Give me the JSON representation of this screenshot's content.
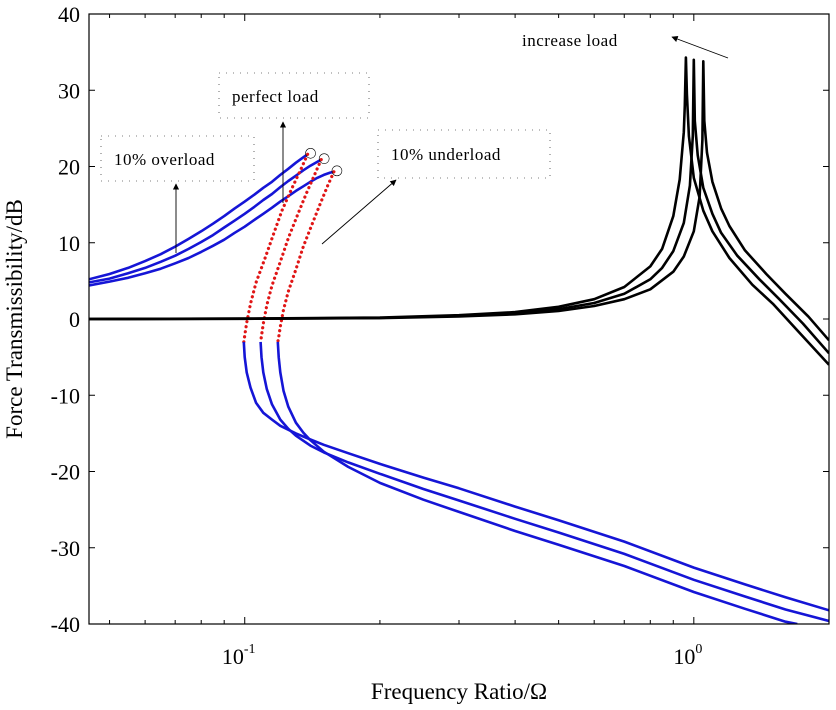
{
  "chart_data": {
    "type": "line",
    "title": "",
    "xlabel": "Frequency Ratio/Ω",
    "ylabel": "Force Transmissibility/dB",
    "xscale": "log",
    "xlim": [
      0.045,
      2.0
    ],
    "ylim": [
      -40,
      40
    ],
    "grid": false,
    "legend": "none",
    "x_ticks": [
      {
        "value": 0.1,
        "base": "10",
        "exp": "-1"
      },
      {
        "value": 1.0,
        "base": "10",
        "exp": "0"
      }
    ],
    "y_ticks": [
      40,
      30,
      20,
      10,
      0,
      -10,
      -20,
      -30,
      -40
    ],
    "y_tick_labels": [
      "40",
      "30",
      "20",
      "10",
      "0",
      "-10",
      "-20",
      "-30",
      "-40"
    ],
    "colors": {
      "stable": "#1515d6",
      "unstable": "#e01515",
      "linear": "#000000"
    },
    "series": [
      {
        "color": "#1515d6",
        "kind": "upper",
        "x": [
          0.045,
          0.05,
          0.055,
          0.06,
          0.065,
          0.07,
          0.075,
          0.08,
          0.085,
          0.09,
          0.095,
          0.1,
          0.105,
          0.11,
          0.115,
          0.12,
          0.125,
          0.13,
          0.135,
          0.138
        ],
        "y": [
          5.2,
          5.9,
          6.7,
          7.6,
          8.5,
          9.5,
          10.5,
          11.5,
          12.5,
          13.5,
          14.5,
          15.4,
          16.3,
          17.2,
          18.0,
          18.9,
          19.7,
          20.5,
          21.2,
          21.6
        ]
      },
      {
        "color": "#1515d6",
        "kind": "upper",
        "x": [
          0.045,
          0.05,
          0.055,
          0.06,
          0.065,
          0.07,
          0.075,
          0.08,
          0.085,
          0.09,
          0.095,
          0.1,
          0.105,
          0.11,
          0.115,
          0.12,
          0.125,
          0.13,
          0.135,
          0.14,
          0.145,
          0.148
        ],
        "y": [
          4.8,
          5.3,
          6.0,
          6.7,
          7.5,
          8.3,
          9.2,
          10.1,
          11.0,
          12.0,
          12.9,
          13.8,
          14.7,
          15.6,
          16.4,
          17.3,
          18.1,
          18.8,
          19.5,
          20.1,
          20.6,
          20.9
        ]
      },
      {
        "color": "#1515d6",
        "kind": "upper",
        "x": [
          0.045,
          0.05,
          0.055,
          0.06,
          0.065,
          0.07,
          0.075,
          0.08,
          0.085,
          0.09,
          0.095,
          0.1,
          0.105,
          0.11,
          0.115,
          0.12,
          0.125,
          0.13,
          0.135,
          0.14,
          0.145,
          0.15,
          0.155,
          0.158
        ],
        "y": [
          4.4,
          4.9,
          5.4,
          6.0,
          6.6,
          7.3,
          8.0,
          8.8,
          9.6,
          10.4,
          11.3,
          12.1,
          13.0,
          13.8,
          14.6,
          15.4,
          16.1,
          16.8,
          17.4,
          18.0,
          18.5,
          18.9,
          19.2,
          19.3
        ]
      },
      {
        "color": "#e01515",
        "kind": "unstable",
        "x": [
          0.138,
          0.133,
          0.127,
          0.121,
          0.116,
          0.111,
          0.106,
          0.103,
          0.101,
          0.1,
          0.0995
        ],
        "y": [
          21.6,
          19.5,
          17.0,
          14.2,
          11.2,
          8.0,
          4.8,
          2.0,
          -0.5,
          -2.2,
          -3.0
        ]
      },
      {
        "color": "#e01515",
        "kind": "unstable",
        "x": [
          0.148,
          0.143,
          0.137,
          0.131,
          0.125,
          0.12,
          0.115,
          0.112,
          0.11,
          0.109,
          0.1085
        ],
        "y": [
          20.9,
          18.9,
          16.4,
          13.6,
          10.6,
          7.5,
          4.4,
          1.8,
          -0.6,
          -2.2,
          -3.0
        ]
      },
      {
        "color": "#e01515",
        "kind": "unstable",
        "x": [
          0.158,
          0.153,
          0.147,
          0.141,
          0.135,
          0.13,
          0.125,
          0.122,
          0.12,
          0.119,
          0.1185
        ],
        "y": [
          19.3,
          17.5,
          15.0,
          12.3,
          9.5,
          6.5,
          3.6,
          1.2,
          -1.0,
          -2.4,
          -3.0
        ]
      },
      {
        "color": "#1515d6",
        "kind": "lower",
        "x": [
          0.0995,
          0.1,
          0.101,
          0.103,
          0.106,
          0.11,
          0.115,
          0.12,
          0.13,
          0.14,
          0.15,
          0.17,
          0.2,
          0.25,
          0.3,
          0.4,
          0.5,
          0.7,
          1.0,
          1.3,
          1.6,
          2.0
        ],
        "y": [
          -3.0,
          -5.0,
          -7.0,
          -9.0,
          -11.0,
          -12.3,
          -13.2,
          -14.0,
          -15.0,
          -15.8,
          -16.5,
          -17.6,
          -19.0,
          -20.8,
          -22.2,
          -24.6,
          -26.4,
          -29.2,
          -32.6,
          -34.8,
          -36.5,
          -38.2
        ]
      },
      {
        "color": "#1515d6",
        "kind": "lower",
        "x": [
          0.1085,
          0.109,
          0.11,
          0.112,
          0.115,
          0.12,
          0.125,
          0.13,
          0.14,
          0.15,
          0.17,
          0.2,
          0.25,
          0.3,
          0.4,
          0.5,
          0.7,
          1.0,
          1.3,
          1.6,
          2.0
        ],
        "y": [
          -3.0,
          -5.0,
          -7.0,
          -9.2,
          -11.2,
          -13.2,
          -14.4,
          -15.3,
          -16.6,
          -17.5,
          -18.8,
          -20.3,
          -22.3,
          -23.8,
          -26.2,
          -28.0,
          -30.8,
          -34.2,
          -36.4,
          -38.1,
          -39.6
        ]
      },
      {
        "color": "#1515d6",
        "kind": "lower",
        "x": [
          0.1185,
          0.119,
          0.12,
          0.122,
          0.125,
          0.13,
          0.135,
          0.14,
          0.15,
          0.17,
          0.2,
          0.25,
          0.3,
          0.4,
          0.5,
          0.7,
          1.0,
          1.3,
          1.6,
          1.7
        ],
        "y": [
          -3.0,
          -5.0,
          -7.0,
          -9.4,
          -11.5,
          -13.6,
          -14.9,
          -15.9,
          -17.4,
          -19.4,
          -21.5,
          -23.7,
          -25.3,
          -27.8,
          -29.6,
          -32.4,
          -35.8,
          -38.0,
          -39.7,
          -40.0
        ]
      },
      {
        "color": "#000000",
        "kind": "linear",
        "x": [
          0.045,
          0.1,
          0.2,
          0.3,
          0.4,
          0.5,
          0.6,
          0.7,
          0.8,
          0.85,
          0.9,
          0.93,
          0.95,
          0.955,
          0.96,
          0.965,
          0.975,
          1.0,
          1.05,
          1.1,
          1.2,
          1.35,
          1.5,
          1.7,
          2.0
        ],
        "y": [
          0.0,
          0.05,
          0.18,
          0.5,
          0.9,
          1.6,
          2.6,
          4.2,
          6.9,
          9.2,
          13.5,
          18.3,
          24.5,
          28.0,
          34.3,
          29.5,
          24.0,
          18.5,
          14.2,
          11.5,
          8.0,
          4.5,
          2.0,
          -1.5,
          -6.0
        ]
      },
      {
        "color": "#000000",
        "kind": "linear",
        "x": [
          0.045,
          0.1,
          0.2,
          0.3,
          0.4,
          0.5,
          0.6,
          0.7,
          0.8,
          0.85,
          0.9,
          0.95,
          0.98,
          0.995,
          1.0,
          1.005,
          1.02,
          1.05,
          1.1,
          1.15,
          1.25,
          1.4,
          1.55,
          1.75,
          2.0
        ],
        "y": [
          0.0,
          0.04,
          0.15,
          0.4,
          0.75,
          1.3,
          2.1,
          3.3,
          5.2,
          6.7,
          8.9,
          12.6,
          17.5,
          24.0,
          34.0,
          26.0,
          21.5,
          17.2,
          13.8,
          11.3,
          8.3,
          5.2,
          2.6,
          -0.6,
          -4.5
        ]
      },
      {
        "color": "#000000",
        "kind": "linear",
        "x": [
          0.045,
          0.1,
          0.2,
          0.3,
          0.4,
          0.5,
          0.6,
          0.7,
          0.8,
          0.9,
          0.95,
          1.0,
          1.03,
          1.045,
          1.05,
          1.055,
          1.07,
          1.1,
          1.15,
          1.2,
          1.3,
          1.45,
          1.6,
          1.8,
          2.0
        ],
        "y": [
          0.0,
          0.03,
          0.12,
          0.33,
          0.62,
          1.05,
          1.7,
          2.6,
          3.9,
          6.2,
          8.2,
          11.5,
          16.0,
          23.5,
          33.8,
          26.0,
          21.8,
          18.0,
          14.5,
          12.2,
          9.0,
          5.9,
          3.3,
          0.3,
          -2.8
        ]
      }
    ],
    "annotations": [
      {
        "id": "overload",
        "text": "10% overload"
      },
      {
        "id": "perfect",
        "text": "perfect load"
      },
      {
        "id": "underload",
        "text": "10% underload"
      },
      {
        "id": "increase",
        "text": "increase load"
      }
    ]
  }
}
